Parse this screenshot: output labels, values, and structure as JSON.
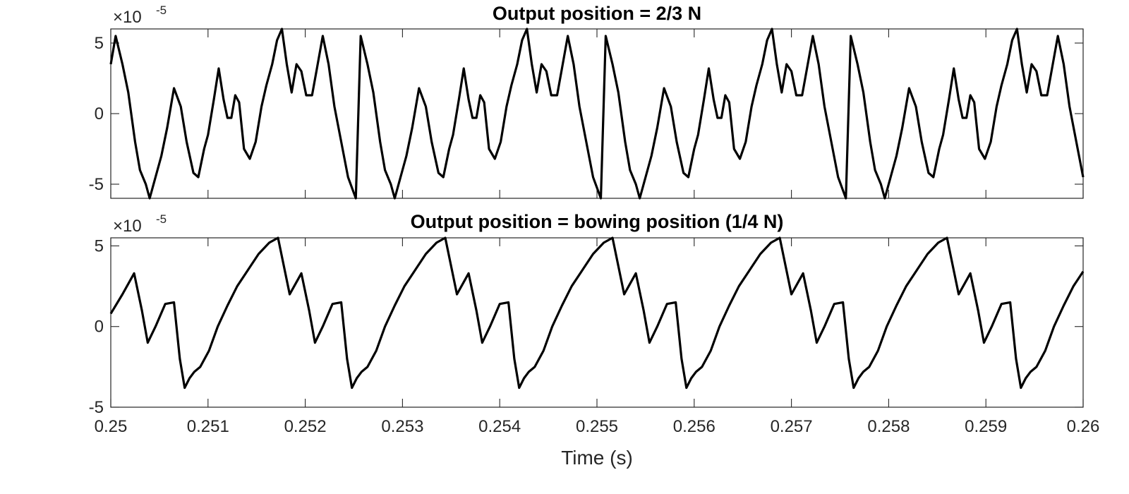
{
  "figure": {
    "xlabel": "Time (s)",
    "x_tick_labels": [
      "0.25",
      "0.251",
      "0.252",
      "0.253",
      "0.254",
      "0.255",
      "0.256",
      "0.257",
      "0.258",
      "0.259",
      "0.26"
    ],
    "y_tick_labels": [
      "-5",
      "0",
      "5"
    ],
    "y_multiplier": {
      "base": "×10",
      "exponent": "-5"
    },
    "line_color": "#000000"
  },
  "chart_data": [
    {
      "type": "line",
      "title": "Output position = 2/3 N",
      "xlabel": "",
      "ylabel": "",
      "xlim": [
        0.25,
        0.26
      ],
      "ylim": [
        -6,
        6
      ],
      "y_scale_factor": 1e-05,
      "grid": false,
      "series": [
        {
          "x": [
            0.25,
            0.25005,
            0.25012,
            0.25018,
            0.25025,
            0.2503,
            0.25036,
            0.2504,
            0.25046,
            0.25052,
            0.25058,
            0.25065,
            0.25072,
            0.25078,
            0.25085,
            0.2509,
            0.25096,
            0.251,
            0.25106,
            0.25111,
            0.25116,
            0.2512,
            0.25124,
            0.25128,
            0.25132,
            0.25137,
            0.25143,
            0.25149,
            0.25155,
            0.2516,
            0.25166,
            0.25171,
            0.25176,
            0.25181,
            0.25186,
            0.25191,
            0.25196,
            0.25201,
            0.25207,
            0.25212,
            0.25218,
            0.25224,
            0.2523,
            0.25237,
            0.25244,
            0.25252
          ],
          "y": [
            3.5,
            5.5,
            3.5,
            1.5,
            -2.0,
            -4.0,
            -5.0,
            -6.0,
            -4.5,
            -3.0,
            -1.0,
            1.8,
            0.5,
            -2.0,
            -4.2,
            -4.5,
            -2.5,
            -1.5,
            1.0,
            3.2,
            1.0,
            -0.3,
            -0.3,
            1.3,
            0.8,
            -2.5,
            -3.2,
            -2.0,
            0.5,
            2.0,
            3.5,
            5.2,
            6.0,
            3.5,
            1.5,
            3.5,
            3.0,
            1.3,
            1.3,
            3.2,
            5.5,
            3.5,
            0.5,
            -2.0,
            -4.5,
            -6.0
          ]
        }
      ]
    },
    {
      "type": "line",
      "title": "Output position = bowing position (1/4 N)",
      "xlabel": "Time (s)",
      "ylabel": "",
      "xlim": [
        0.25,
        0.26
      ],
      "ylim": [
        -5,
        5.5
      ],
      "y_scale_factor": 1e-05,
      "grid": false,
      "series": [
        {
          "x": [
            0.25,
            0.25012,
            0.25024,
            0.25032,
            0.25038,
            0.25046,
            0.25056,
            0.25065,
            0.25071,
            0.25076,
            0.25081,
            0.25086,
            0.25092,
            0.25101,
            0.2511,
            0.2512,
            0.2513,
            0.25141,
            0.25152,
            0.25163,
            0.25172
          ],
          "y": [
            0.8,
            2.0,
            3.3,
            1.0,
            -1.0,
            0.0,
            1.4,
            1.5,
            -2.0,
            -3.8,
            -3.2,
            -2.8,
            -2.5,
            -1.5,
            0.0,
            1.3,
            2.5,
            3.5,
            4.5,
            5.2,
            5.5
          ]
        }
      ]
    }
  ]
}
